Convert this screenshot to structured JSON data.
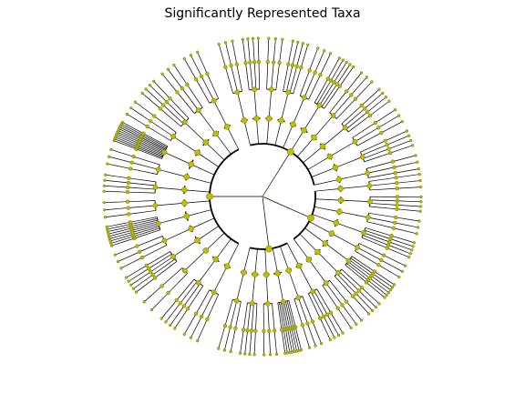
{
  "figure": {
    "title": "Significantly Represented Taxa"
  },
  "colors": {
    "node_fill": "#bfbf00",
    "node_edge": "#6b6b00",
    "branch": "#000000",
    "background": "#ffffff"
  },
  "tree": {
    "type": "circular-cladogram",
    "layout": "radial",
    "root_clade_count": 4,
    "clades": [
      {
        "id": "A",
        "sector_deg": [
          -10,
          58
        ],
        "subclades": 8,
        "leaves_per_subclade": [
          3,
          4,
          3,
          5,
          3,
          6,
          4,
          3
        ]
      },
      {
        "id": "B",
        "sector_deg": [
          58,
          108
        ],
        "subclades": 6,
        "leaves_per_subclade": [
          4,
          3,
          8,
          3,
          4,
          3
        ]
      },
      {
        "id": "C",
        "sector_deg": [
          112,
          248
        ],
        "subclades": 14,
        "leaves_per_subclade": [
          3,
          4,
          2,
          5,
          3,
          9,
          3,
          4,
          3,
          12,
          3,
          4,
          3,
          3
        ]
      },
      {
        "id": "D",
        "sector_deg": [
          252,
          352
        ],
        "subclades": 11,
        "leaves_per_subclade": [
          3,
          4,
          3,
          4,
          3,
          5,
          3,
          4,
          3,
          4,
          3
        ]
      }
    ]
  }
}
